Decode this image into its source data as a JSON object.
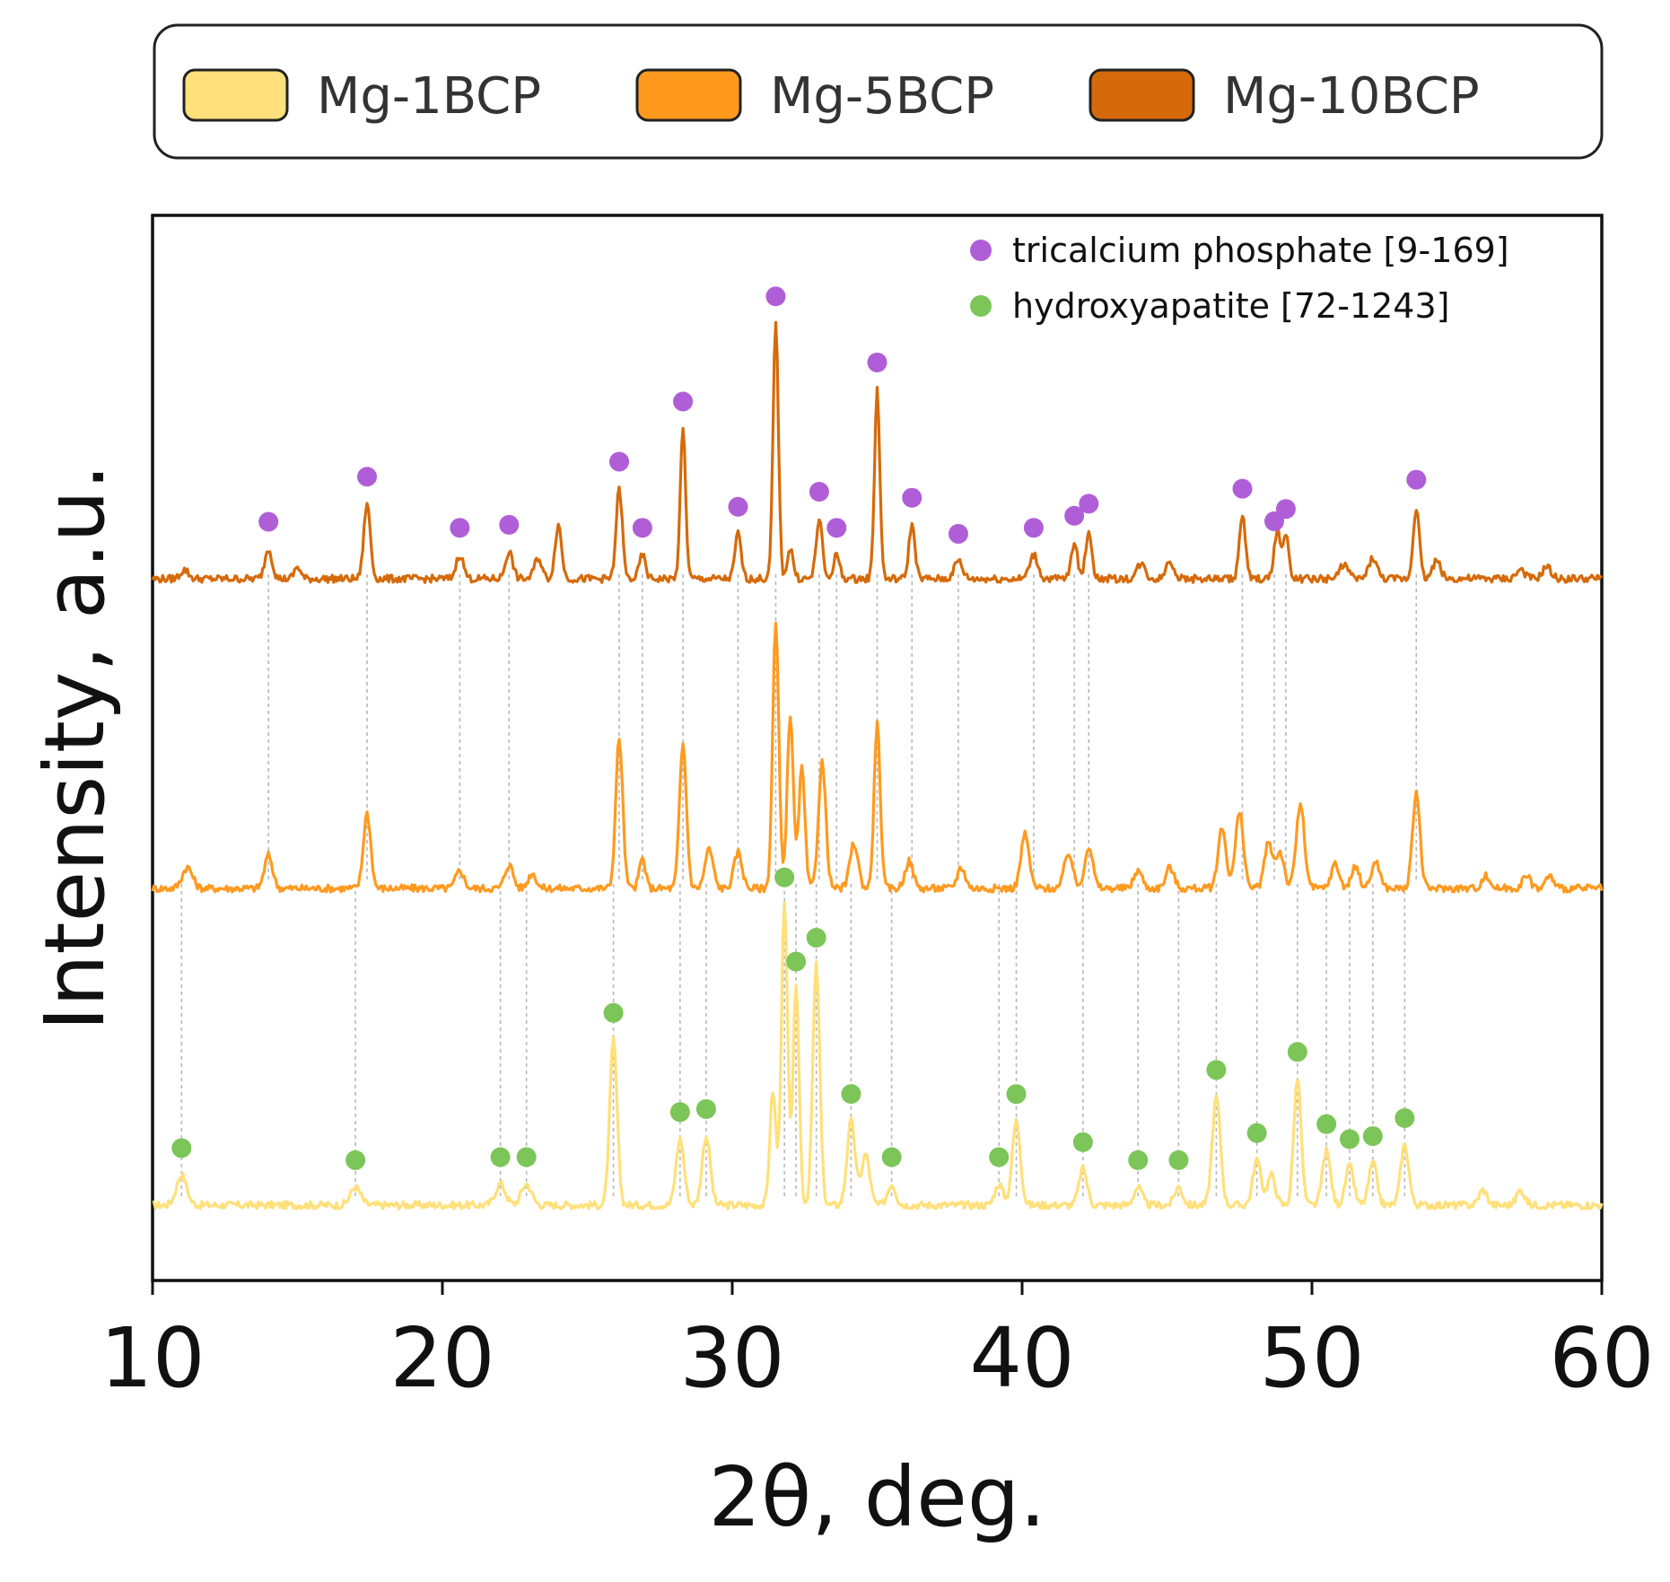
{
  "chart_data": {
    "type": "line",
    "title": "",
    "xlabel": "2θ, deg.",
    "ylabel": "Intensity, a.u.",
    "xlim": [
      10,
      60
    ],
    "xticks": [
      10,
      20,
      30,
      40,
      50,
      60
    ],
    "yticks_shown": false,
    "grid": false,
    "legend_position": "top (outside plot, boxed)",
    "series": [
      {
        "name": "Mg-1BCP",
        "color": "#FFE07A",
        "legend_fill": "#FFE07A",
        "baseline": 0.0,
        "peaks": [
          [
            11.0,
            0.1,
            0.25
          ],
          [
            17.0,
            0.06,
            0.25
          ],
          [
            22.0,
            0.07,
            0.25
          ],
          [
            22.9,
            0.07,
            0.25
          ],
          [
            25.9,
            0.55,
            0.18
          ],
          [
            28.2,
            0.22,
            0.2
          ],
          [
            29.1,
            0.23,
            0.2
          ],
          [
            31.4,
            0.38,
            0.15
          ],
          [
            31.8,
            1.0,
            0.15
          ],
          [
            32.2,
            0.72,
            0.15
          ],
          [
            32.9,
            0.8,
            0.17
          ],
          [
            34.1,
            0.28,
            0.2
          ],
          [
            34.6,
            0.17,
            0.2
          ],
          [
            35.5,
            0.07,
            0.2
          ],
          [
            39.2,
            0.07,
            0.2
          ],
          [
            39.8,
            0.28,
            0.2
          ],
          [
            42.1,
            0.12,
            0.2
          ],
          [
            44.0,
            0.06,
            0.2
          ],
          [
            45.4,
            0.06,
            0.2
          ],
          [
            46.7,
            0.36,
            0.2
          ],
          [
            48.1,
            0.15,
            0.2
          ],
          [
            48.6,
            0.1,
            0.2
          ],
          [
            49.5,
            0.42,
            0.18
          ],
          [
            50.5,
            0.18,
            0.2
          ],
          [
            51.3,
            0.13,
            0.2
          ],
          [
            52.1,
            0.14,
            0.2
          ],
          [
            53.2,
            0.2,
            0.2
          ],
          [
            55.9,
            0.05,
            0.2
          ],
          [
            57.2,
            0.05,
            0.2
          ]
        ]
      },
      {
        "name": "Mg-5BCP",
        "color": "#FF9A1F",
        "legend_fill": "#FF9A1F",
        "baseline": 1.0,
        "peaks": [
          [
            11.2,
            0.07,
            0.25
          ],
          [
            14.0,
            0.11,
            0.2
          ],
          [
            17.4,
            0.25,
            0.18
          ],
          [
            20.6,
            0.06,
            0.2
          ],
          [
            22.3,
            0.08,
            0.2
          ],
          [
            23.1,
            0.05,
            0.2
          ],
          [
            26.1,
            0.5,
            0.17
          ],
          [
            26.9,
            0.1,
            0.15
          ],
          [
            28.3,
            0.48,
            0.17
          ],
          [
            29.2,
            0.13,
            0.2
          ],
          [
            30.2,
            0.12,
            0.2
          ],
          [
            31.5,
            0.88,
            0.15
          ],
          [
            32.0,
            0.58,
            0.15
          ],
          [
            32.4,
            0.4,
            0.15
          ],
          [
            33.1,
            0.42,
            0.18
          ],
          [
            34.2,
            0.15,
            0.2
          ],
          [
            35.0,
            0.55,
            0.15
          ],
          [
            36.1,
            0.09,
            0.2
          ],
          [
            37.9,
            0.07,
            0.2
          ],
          [
            40.1,
            0.18,
            0.2
          ],
          [
            41.6,
            0.12,
            0.2
          ],
          [
            42.3,
            0.14,
            0.2
          ],
          [
            44.0,
            0.06,
            0.2
          ],
          [
            45.1,
            0.07,
            0.2
          ],
          [
            46.9,
            0.2,
            0.2
          ],
          [
            47.5,
            0.25,
            0.2
          ],
          [
            48.5,
            0.15,
            0.2
          ],
          [
            48.9,
            0.12,
            0.2
          ],
          [
            49.6,
            0.28,
            0.2
          ],
          [
            50.8,
            0.08,
            0.2
          ],
          [
            51.5,
            0.07,
            0.2
          ],
          [
            52.2,
            0.09,
            0.2
          ],
          [
            53.6,
            0.32,
            0.18
          ],
          [
            56.0,
            0.04,
            0.2
          ],
          [
            57.4,
            0.04,
            0.2
          ],
          [
            58.2,
            0.04,
            0.2
          ]
        ]
      },
      {
        "name": "Mg-10BCP",
        "color": "#D66A0A",
        "legend_fill": "#D66A0A",
        "baseline": 2.0,
        "peaks": [
          [
            11.1,
            0.03,
            0.2
          ],
          [
            14.0,
            0.1,
            0.18
          ],
          [
            15.0,
            0.04,
            0.15
          ],
          [
            17.4,
            0.25,
            0.16
          ],
          [
            20.6,
            0.08,
            0.18
          ],
          [
            22.3,
            0.09,
            0.18
          ],
          [
            23.3,
            0.07,
            0.18
          ],
          [
            24.0,
            0.18,
            0.16
          ],
          [
            26.1,
            0.3,
            0.15
          ],
          [
            26.9,
            0.08,
            0.15
          ],
          [
            28.3,
            0.5,
            0.13
          ],
          [
            30.2,
            0.15,
            0.15
          ],
          [
            31.5,
            0.85,
            0.13
          ],
          [
            32.0,
            0.1,
            0.15
          ],
          [
            33.0,
            0.2,
            0.15
          ],
          [
            33.6,
            0.08,
            0.15
          ],
          [
            35.0,
            0.63,
            0.13
          ],
          [
            36.2,
            0.18,
            0.15
          ],
          [
            37.8,
            0.06,
            0.2
          ],
          [
            40.4,
            0.08,
            0.2
          ],
          [
            41.8,
            0.12,
            0.15
          ],
          [
            42.3,
            0.16,
            0.15
          ],
          [
            44.1,
            0.05,
            0.2
          ],
          [
            45.1,
            0.06,
            0.2
          ],
          [
            47.6,
            0.21,
            0.15
          ],
          [
            48.8,
            0.16,
            0.15
          ],
          [
            49.1,
            0.14,
            0.15
          ],
          [
            51.1,
            0.05,
            0.2
          ],
          [
            52.1,
            0.07,
            0.2
          ],
          [
            53.6,
            0.24,
            0.15
          ],
          [
            54.3,
            0.06,
            0.2
          ],
          [
            57.2,
            0.03,
            0.2
          ],
          [
            58.1,
            0.04,
            0.2
          ]
        ]
      }
    ],
    "phase_legend": [
      {
        "name": "tricalcium phosphate [9-169]",
        "color": "#B05ED8"
      },
      {
        "name": "hydroxyapatite [72-1243]",
        "color": "#7CC558"
      }
    ],
    "phase_markers": {
      "tricalcium_phosphate": [
        14.0,
        17.4,
        20.6,
        22.3,
        26.1,
        26.9,
        28.3,
        30.2,
        31.5,
        33.0,
        33.6,
        35.0,
        36.2,
        37.8,
        40.4,
        41.8,
        42.3,
        47.6,
        48.7,
        49.1,
        53.6
      ],
      "hydroxyapatite": [
        11.0,
        17.0,
        22.0,
        22.9,
        25.9,
        28.2,
        29.1,
        31.8,
        32.2,
        32.9,
        34.1,
        35.5,
        39.2,
        39.8,
        42.1,
        44.0,
        45.4,
        46.7,
        48.1,
        49.5,
        50.5,
        51.3,
        52.1,
        53.2
      ]
    }
  }
}
